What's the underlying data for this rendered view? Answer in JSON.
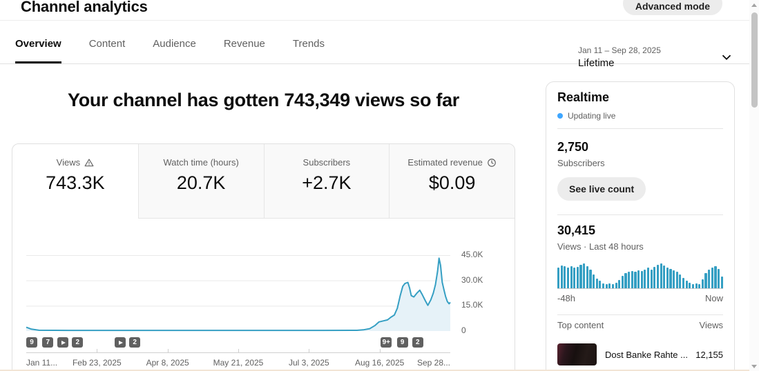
{
  "header": {
    "title": "Channel analytics",
    "advanced_mode_label": "Advanced mode"
  },
  "tabs": {
    "items": [
      {
        "label": "Overview",
        "active": true
      },
      {
        "label": "Content",
        "active": false
      },
      {
        "label": "Audience",
        "active": false
      },
      {
        "label": "Revenue",
        "active": false
      },
      {
        "label": "Trends",
        "active": false
      }
    ]
  },
  "date_filter": {
    "range": "Jan 11 – Sep 28, 2025",
    "preset": "Lifetime"
  },
  "main": {
    "headline": "Your channel has gotten 743,349 views so far",
    "metric_cards": [
      {
        "label": "Views",
        "value": "743.3K",
        "icon": "warning",
        "selected": true
      },
      {
        "label": "Watch time (hours)",
        "value": "20.7K",
        "icon": "",
        "selected": false
      },
      {
        "label": "Subscribers",
        "value": "+2.7K",
        "icon": "",
        "selected": false
      },
      {
        "label": "Estimated revenue",
        "value": "$0.09",
        "icon": "clock",
        "selected": false
      }
    ]
  },
  "chart_data": [
    {
      "id": "views-over-time",
      "type": "area",
      "x_range": [
        "Jan 11, 2025",
        "Sep 28, 2025"
      ],
      "xticks": [
        "Jan 11...",
        "Feb 23, 2025",
        "Apr 8, 2025",
        "May 21, 2025",
        "Jul 3, 2025",
        "Aug 16, 2025",
        "Sep 28..."
      ],
      "yticks": [
        "0",
        "15.0K",
        "30.0K",
        "45.0K"
      ],
      "ytick_values": [
        0,
        15000,
        30000,
        45000
      ],
      "ylim": [
        0,
        45000
      ],
      "grid": true,
      "points": [
        [
          0.0,
          2200
        ],
        [
          0.004,
          1900
        ],
        [
          0.012,
          1100
        ],
        [
          0.03,
          450
        ],
        [
          0.1,
          380
        ],
        [
          0.2,
          380
        ],
        [
          0.3,
          380
        ],
        [
          0.4,
          380
        ],
        [
          0.5,
          380
        ],
        [
          0.6,
          380
        ],
        [
          0.7,
          380
        ],
        [
          0.78,
          420
        ],
        [
          0.795,
          700
        ],
        [
          0.81,
          1400
        ],
        [
          0.822,
          3200
        ],
        [
          0.832,
          5400
        ],
        [
          0.842,
          6000
        ],
        [
          0.852,
          6600
        ],
        [
          0.86,
          8200
        ],
        [
          0.868,
          9500
        ],
        [
          0.875,
          13500
        ],
        [
          0.882,
          21000
        ],
        [
          0.888,
          26500
        ],
        [
          0.893,
          28200
        ],
        [
          0.9,
          28800
        ],
        [
          0.904,
          25500
        ],
        [
          0.908,
          21000
        ],
        [
          0.914,
          20200
        ],
        [
          0.921,
          22400
        ],
        [
          0.928,
          24200
        ],
        [
          0.934,
          21500
        ],
        [
          0.941,
          18000
        ],
        [
          0.947,
          15200
        ],
        [
          0.954,
          18500
        ],
        [
          0.96,
          22500
        ],
        [
          0.965,
          27500
        ],
        [
          0.97,
          35500
        ],
        [
          0.9735,
          43200
        ],
        [
          0.977,
          39000
        ],
        [
          0.981,
          29000
        ],
        [
          0.985,
          24500
        ],
        [
          0.989,
          20500
        ],
        [
          0.993,
          17500
        ],
        [
          0.997,
          16200
        ],
        [
          1.0,
          17000
        ]
      ],
      "markers": [
        {
          "t": "9",
          "x": 0.0
        },
        {
          "t": "7",
          "x": 0.038
        },
        {
          "t": "play",
          "x": 0.074
        },
        {
          "t": "2",
          "x": 0.108
        },
        {
          "t": "play",
          "x": 0.209
        },
        {
          "t": "2",
          "x": 0.243
        },
        {
          "t": "9+",
          "x": 0.836
        },
        {
          "t": "9",
          "x": 0.874
        },
        {
          "t": "2",
          "x": 0.91
        }
      ]
    },
    {
      "id": "realtime-48h",
      "type": "bar",
      "xlabels": [
        "-48h",
        "Now"
      ],
      "values_norm": [
        0.8,
        0.88,
        0.84,
        0.8,
        0.85,
        0.78,
        0.82,
        0.9,
        0.95,
        0.84,
        0.7,
        0.52,
        0.38,
        0.28,
        0.18,
        0.15,
        0.18,
        0.15,
        0.22,
        0.32,
        0.48,
        0.58,
        0.63,
        0.66,
        0.63,
        0.68,
        0.66,
        0.72,
        0.78,
        0.72,
        0.82,
        0.9,
        0.95,
        0.88,
        0.8,
        0.73,
        0.68,
        0.62,
        0.52,
        0.4,
        0.28,
        0.2,
        0.15,
        0.18,
        0.15,
        0.35,
        0.58,
        0.72,
        0.8,
        0.85,
        0.75,
        0.45
      ]
    }
  ],
  "realtime": {
    "title": "Realtime",
    "status": "Updating live",
    "subscribers_value": "2,750",
    "subscribers_label": "Subscribers",
    "live_count_button": "See live count",
    "views_value": "30,415",
    "views_label": "Views · Last 48 hours",
    "axis_left": "-48h",
    "axis_right": "Now",
    "top_content": {
      "title": "Top content",
      "views_header": "Views",
      "items": [
        {
          "title": "Dost Banke Rahte ...",
          "views": "12,155"
        }
      ]
    }
  },
  "colors": {
    "accent_line": "#359fc3",
    "area_fill": "#e6f2f8",
    "live_dot": "#3ea6ff",
    "badge_bg": "#606060"
  }
}
